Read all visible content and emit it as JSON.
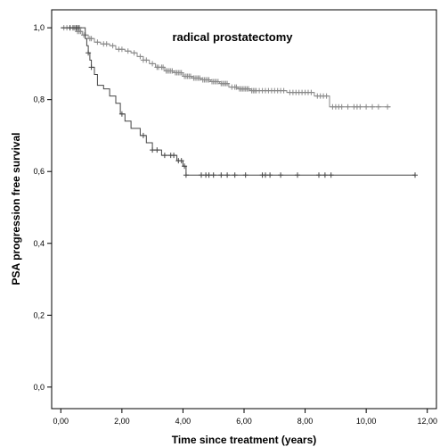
{
  "chart_data": {
    "type": "line",
    "chart_kind": "kaplan-meier",
    "title": "radical prostatectomy",
    "xlabel": "Time since treatment (years)",
    "ylabel": "PSA progression free survival",
    "xlim": [
      -0.3,
      12.3
    ],
    "ylim": [
      -0.06,
      1.05
    ],
    "xticks": [
      0,
      2,
      4,
      6,
      8,
      10,
      12
    ],
    "yticks": [
      0.0,
      0.2,
      0.4,
      0.6,
      0.8,
      1.0
    ],
    "xtick_labels": [
      "0,00",
      "2,00",
      "4,00",
      "6,00",
      "8,00",
      "10,00",
      "12,00"
    ],
    "ytick_labels": [
      "0,0",
      "0,2",
      "0,4",
      "0,6",
      "0,8",
      "1,0"
    ],
    "grid": false,
    "legend": "none",
    "series": [
      {
        "color": "#888888",
        "steps": [
          [
            0,
            1.0
          ],
          [
            0.5,
            0.99
          ],
          [
            0.7,
            0.98
          ],
          [
            0.9,
            0.97
          ],
          [
            1.1,
            0.96
          ],
          [
            1.3,
            0.955
          ],
          [
            1.6,
            0.95
          ],
          [
            1.8,
            0.94
          ],
          [
            2.1,
            0.935
          ],
          [
            2.3,
            0.93
          ],
          [
            2.5,
            0.92
          ],
          [
            2.7,
            0.91
          ],
          [
            2.9,
            0.9
          ],
          [
            3.1,
            0.89
          ],
          [
            3.4,
            0.88
          ],
          [
            3.7,
            0.875
          ],
          [
            4.0,
            0.865
          ],
          [
            4.3,
            0.86
          ],
          [
            4.6,
            0.855
          ],
          [
            4.9,
            0.85
          ],
          [
            5.2,
            0.845
          ],
          [
            5.5,
            0.835
          ],
          [
            5.8,
            0.83
          ],
          [
            6.2,
            0.825
          ],
          [
            6.6,
            0.825
          ],
          [
            7.4,
            0.82
          ],
          [
            8.3,
            0.81
          ],
          [
            8.8,
            0.78
          ],
          [
            10.8,
            0.78
          ]
        ],
        "censor_x": [
          0.1,
          0.2,
          0.3,
          0.4,
          0.45,
          0.55,
          0.6,
          0.65,
          0.75,
          0.8,
          0.95,
          1.0,
          1.2,
          1.4,
          1.5,
          1.7,
          1.9,
          2.0,
          2.2,
          2.4,
          2.6,
          2.7,
          2.8,
          3.0,
          3.15,
          3.2,
          3.3,
          3.35,
          3.45,
          3.5,
          3.55,
          3.6,
          3.65,
          3.75,
          3.8,
          3.85,
          3.9,
          3.95,
          4.05,
          4.1,
          4.15,
          4.2,
          4.25,
          4.35,
          4.4,
          4.45,
          4.5,
          4.55,
          4.65,
          4.7,
          4.75,
          4.8,
          4.85,
          4.95,
          5.0,
          5.05,
          5.1,
          5.15,
          5.25,
          5.3,
          5.35,
          5.4,
          5.45,
          5.6,
          5.7,
          5.75,
          5.85,
          5.9,
          5.95,
          6.0,
          6.05,
          6.1,
          6.15,
          6.25,
          6.3,
          6.35,
          6.4,
          6.5,
          6.6,
          6.7,
          6.8,
          6.9,
          7.0,
          7.1,
          7.2,
          7.3,
          7.5,
          7.6,
          7.7,
          7.8,
          7.9,
          8.0,
          8.1,
          8.2,
          8.4,
          8.5,
          8.6,
          8.7,
          8.9,
          9.0,
          9.1,
          9.2,
          9.4,
          9.6,
          9.7,
          9.8,
          10.0,
          10.2,
          10.4,
          10.7
        ]
      },
      {
        "color": "#444444",
        "steps": [
          [
            0,
            1.0
          ],
          [
            0.8,
            0.97
          ],
          [
            0.85,
            0.95
          ],
          [
            0.9,
            0.93
          ],
          [
            0.95,
            0.91
          ],
          [
            1.0,
            0.89
          ],
          [
            1.1,
            0.87
          ],
          [
            1.2,
            0.84
          ],
          [
            1.4,
            0.83
          ],
          [
            1.6,
            0.81
          ],
          [
            1.8,
            0.79
          ],
          [
            1.95,
            0.76
          ],
          [
            2.1,
            0.74
          ],
          [
            2.3,
            0.72
          ],
          [
            2.6,
            0.7
          ],
          [
            2.8,
            0.68
          ],
          [
            3.0,
            0.66
          ],
          [
            3.3,
            0.645
          ],
          [
            3.8,
            0.63
          ],
          [
            4.0,
            0.615
          ],
          [
            4.1,
            0.59
          ],
          [
            11.6,
            0.59
          ]
        ],
        "censor_x": [
          0.3,
          0.4,
          0.5,
          0.55,
          0.6,
          0.9,
          1.0,
          2.0,
          2.7,
          3.0,
          3.15,
          3.4,
          3.6,
          3.7,
          3.85,
          3.95,
          4.05,
          4.1,
          4.6,
          4.75,
          4.85,
          5.0,
          5.25,
          5.45,
          5.7,
          6.05,
          6.6,
          6.7,
          6.85,
          7.2,
          7.75,
          8.45,
          8.65,
          8.85,
          11.6
        ]
      }
    ]
  }
}
